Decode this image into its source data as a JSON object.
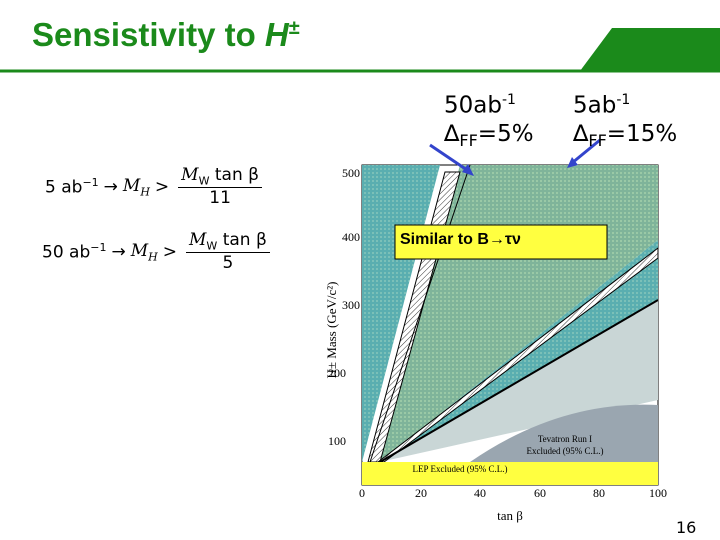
{
  "header": {
    "title": "Sensistivity to ",
    "title_var": "H",
    "title_sup": "±"
  },
  "annotations": [
    {
      "lumi": "50ab",
      "exp": "-1",
      "delta": "∆",
      "sub": "FF",
      "rest": "=5%"
    },
    {
      "lumi": "5ab",
      "exp": "-1",
      "delta": "∆",
      "sub": "FF",
      "rest": "=15%"
    }
  ],
  "equations": [
    {
      "lumi": "5 ab",
      "exp": "−1",
      "arrow": "→",
      "lhs": "M",
      "lhs_sub": "H",
      "op": ">",
      "num": "M",
      "num_sub": "W",
      "num_rest": " tan β",
      "den": "11"
    },
    {
      "lumi": "50 ab",
      "exp": "−1",
      "arrow": "→",
      "lhs": "M",
      "lhs_sub": "H",
      "op": ">",
      "num": "M",
      "num_sub": "W",
      "num_rest": " tan β",
      "den": "5"
    }
  ],
  "figure": {
    "y_label": "H± Mass (GeV/c²)",
    "x_label": "tan β",
    "y_ticks": [
      "100",
      "200",
      "300",
      "400",
      "500"
    ],
    "x_ticks": [
      "0",
      "20",
      "40",
      "60",
      "80",
      "100"
    ],
    "tevatron": [
      "Tevatron Run I",
      "Excluded (95% C.L.)"
    ],
    "lep": "LEP Excluded (95% C.L.)",
    "callout": "Similar to B→τν"
  },
  "page_number": "16"
}
